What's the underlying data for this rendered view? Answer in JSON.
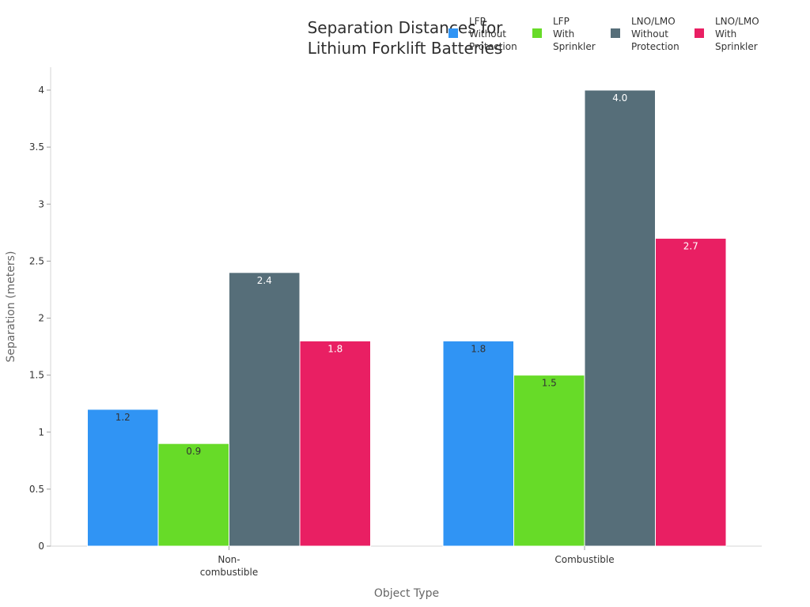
{
  "chart_data": {
    "type": "bar",
    "title": [
      "Separation Distances for",
      "Lithium Forklift Batteries"
    ],
    "xlabel": "Object Type",
    "ylabel": "Separation (meters)",
    "categories": [
      [
        "Non-",
        "combustible"
      ],
      [
        "Combustible"
      ]
    ],
    "ylim": [
      0,
      4.2
    ],
    "yticks": [
      "0",
      "0.5",
      "1",
      "1.5",
      "2",
      "2.5",
      "3",
      "3.5",
      "4"
    ],
    "legend_position": "top-right",
    "grid": false,
    "series": [
      {
        "name": [
          "LFP",
          "Without",
          "Protection"
        ],
        "color": "#3094f4",
        "label_color": "#333333",
        "values": [
          1.2,
          1.8
        ],
        "labels": [
          "1.2",
          "1.8"
        ]
      },
      {
        "name": [
          "LFP",
          "With",
          "Sprinkler"
        ],
        "color": "#67db28",
        "label_color": "#333333",
        "values": [
          0.9,
          1.5
        ],
        "labels": [
          "0.9",
          "1.5"
        ]
      },
      {
        "name": [
          "LNO/LMO",
          "Without",
          "Protection"
        ],
        "color": "#566e79",
        "label_color": "#ffffff",
        "values": [
          2.4,
          4.0
        ],
        "labels": [
          "2.4",
          "4.0"
        ]
      },
      {
        "name": [
          "LNO/LMO",
          "With",
          "Sprinkler"
        ],
        "color": "#e91f63",
        "label_color": "#ffffff",
        "values": [
          1.8,
          2.7
        ],
        "labels": [
          "1.8",
          "2.7"
        ]
      }
    ]
  }
}
